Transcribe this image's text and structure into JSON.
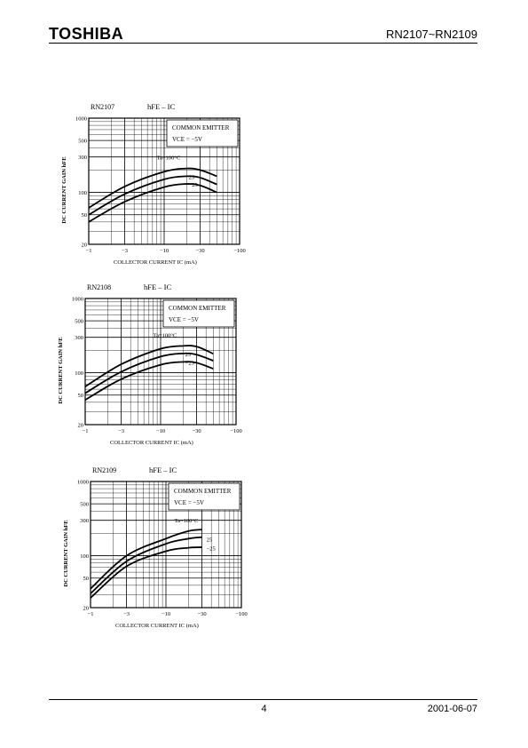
{
  "header": {
    "logo": "TOSHIBA",
    "part_numbers": "RN2107~RN2109"
  },
  "footer": {
    "page_number": "4",
    "date": "2001-06-07"
  },
  "chart_data": [
    {
      "type": "line",
      "part": "RN2107",
      "title": "hFE – IC",
      "xlabel": "COLLECTOR CURRENT  IC  (mA)",
      "ylabel": "DC CURRENT GAIN  hFE",
      "x_scale": "log",
      "y_scale": "log",
      "xlim": [
        -1,
        -100
      ],
      "ylim": [
        20,
        1000
      ],
      "xticks": [
        "−1",
        "−3",
        "−10",
        "−30",
        "−100"
      ],
      "yticks": [
        "20",
        "50",
        "100",
        "300",
        "500",
        "1000"
      ],
      "conditions": [
        "COMMON EMITTER",
        "VCE = −5V"
      ],
      "series": [
        {
          "name": "Ta=100°C",
          "x": [
            -1,
            -3,
            -10,
            -20,
            -30,
            -50
          ],
          "y": [
            62,
            120,
            190,
            210,
            200,
            165
          ]
        },
        {
          "name": "25",
          "x": [
            -1,
            -3,
            -10,
            -20,
            -30,
            -50
          ],
          "y": [
            50,
            95,
            150,
            165,
            158,
            128
          ]
        },
        {
          "name": "−25",
          "x": [
            -1,
            -3,
            -10,
            -20,
            -30,
            -50
          ],
          "y": [
            40,
            75,
            118,
            130,
            124,
            100
          ]
        }
      ]
    },
    {
      "type": "line",
      "part": "RN2108",
      "title": "hFE – IC",
      "xlabel": "COLLECTOR CURRENT  IC  (mA)",
      "ylabel": "DC CURRENT GAIN  hFE",
      "x_scale": "log",
      "y_scale": "log",
      "xlim": [
        -1,
        -100
      ],
      "ylim": [
        20,
        1000
      ],
      "xticks": [
        "−1",
        "−3",
        "−10",
        "−30",
        "−100"
      ],
      "yticks": [
        "20",
        "50",
        "100",
        "300",
        "500",
        "1000"
      ],
      "conditions": [
        "COMMON EMITTER",
        "VCE = −5V"
      ],
      "series": [
        {
          "name": "Ta=100°C",
          "x": [
            -1,
            -3,
            -10,
            -20,
            -30,
            -50
          ],
          "y": [
            65,
            130,
            210,
            230,
            225,
            180
          ]
        },
        {
          "name": "25",
          "x": [
            -1,
            -3,
            -10,
            -20,
            -30,
            -50
          ],
          "y": [
            53,
            103,
            165,
            182,
            175,
            145
          ]
        },
        {
          "name": "−25",
          "x": [
            -1,
            -3,
            -10,
            -20,
            -30,
            -50
          ],
          "y": [
            43,
            82,
            128,
            140,
            136,
            113
          ]
        }
      ]
    },
    {
      "type": "line",
      "part": "RN2109",
      "title": "hFE – IC",
      "xlabel": "COLLECTOR CURRENT  IC  (mA)",
      "ylabel": "DC CURRENT GAIN  hFE",
      "x_scale": "log",
      "y_scale": "log",
      "xlim": [
        -1,
        -100
      ],
      "ylim": [
        20,
        1000
      ],
      "xticks": [
        "−1",
        "−3",
        "−10",
        "−30",
        "−100"
      ],
      "yticks": [
        "20",
        "50",
        "100",
        "300",
        "500",
        "1000"
      ],
      "conditions": [
        "COMMON EMITTER",
        "VCE = −5V"
      ],
      "series": [
        {
          "name": "Ta=100°C",
          "x": [
            -1,
            -3,
            -10,
            -20,
            -30
          ],
          "y": [
            36,
            100,
            170,
            215,
            225
          ]
        },
        {
          "name": "25",
          "x": [
            -1,
            -3,
            -10,
            -20,
            -30
          ],
          "y": [
            31,
            84,
            145,
            170,
            178
          ]
        },
        {
          "name": "−25",
          "x": [
            -1,
            -3,
            -10,
            -20,
            -30
          ],
          "y": [
            27,
            72,
            115,
            128,
            130
          ]
        }
      ]
    }
  ]
}
